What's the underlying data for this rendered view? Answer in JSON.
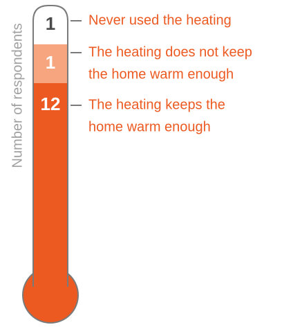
{
  "chart_data": {
    "type": "bar",
    "ylabel": "Number of respondents",
    "series": [
      {
        "name": "Never used the heating",
        "value": 1,
        "color": "#ffffff",
        "label_color": "#4a4a4a",
        "lines": [
          "Never used the heating"
        ]
      },
      {
        "name": "The heating does not keep the home warm enough",
        "value": 1,
        "color": "#f6a57f",
        "label_color": "#ffffff",
        "lines": [
          "The heating does not keep",
          "the home warm enough"
        ]
      },
      {
        "name": "The heating keeps the home warm enough",
        "value": 12,
        "color": "#ec5a22",
        "label_color": "#ffffff",
        "lines": [
          "The heating keeps the",
          "home warm enough"
        ]
      }
    ],
    "accent": "#ec5a22",
    "outline": "#7a7a7a"
  }
}
